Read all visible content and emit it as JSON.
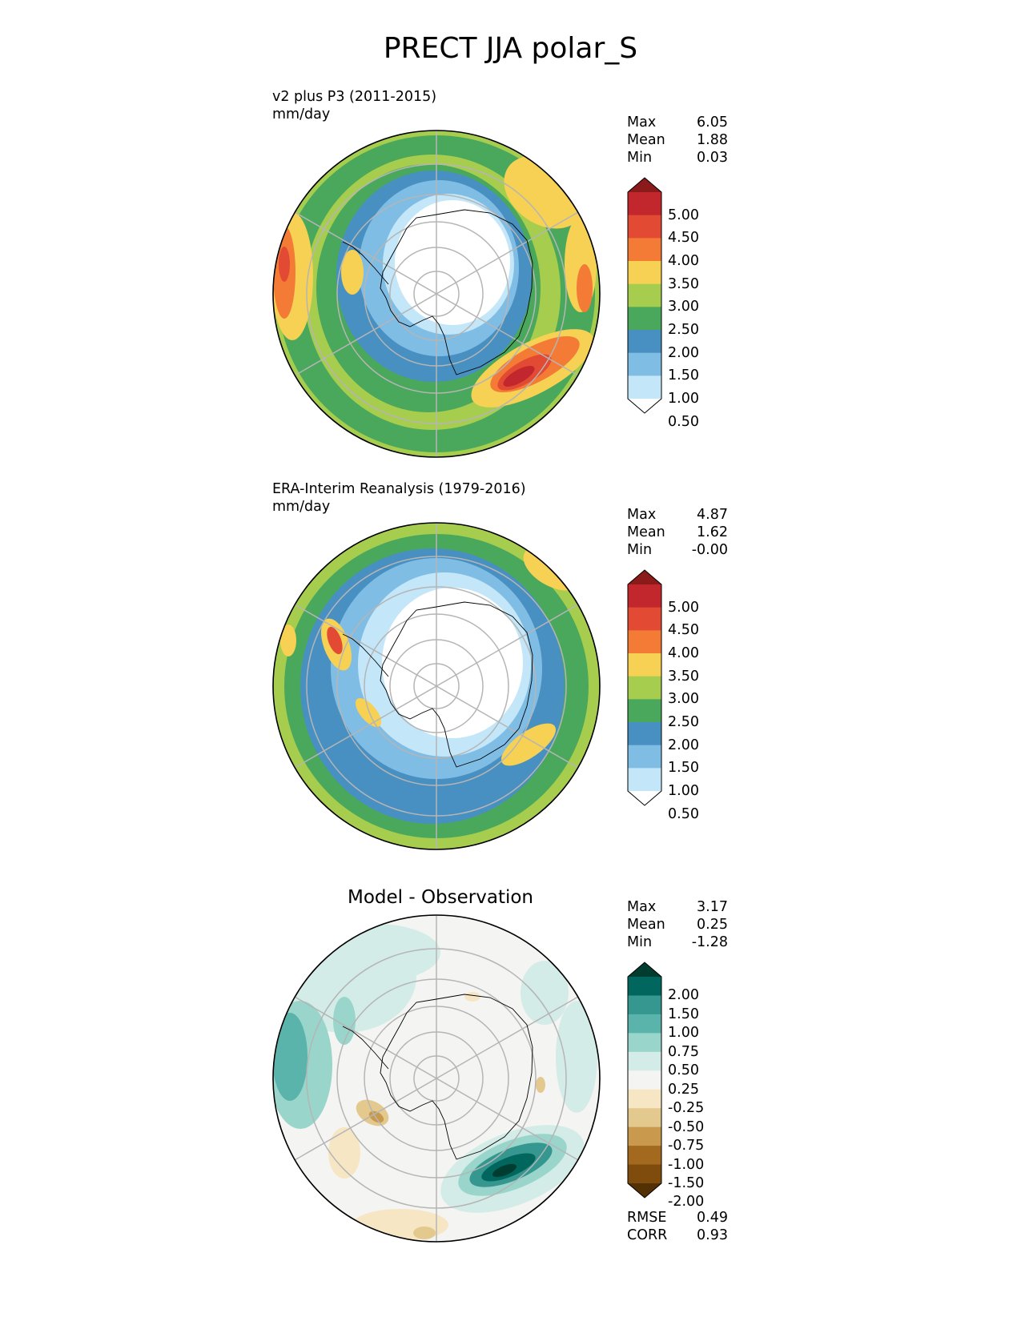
{
  "page": {
    "title": "PRECT JJA polar_S"
  },
  "panels": [
    {
      "title": "v2 plus P3 (2011-2015)",
      "units": "mm/day",
      "stats": [
        {
          "label": "Max",
          "value": "6.05"
        },
        {
          "label": "Mean",
          "value": "1.88"
        },
        {
          "label": "Min",
          "value": "0.03"
        }
      ]
    },
    {
      "title": "ERA-Interim Reanalysis (1979-2016)",
      "units": "mm/day",
      "stats": [
        {
          "label": "Max",
          "value": "4.87"
        },
        {
          "label": "Mean",
          "value": "1.62"
        },
        {
          "label": "Min",
          "value": "-0.00"
        }
      ]
    },
    {
      "title": "Model - Observation",
      "stats": [
        {
          "label": "Max",
          "value": "3.17"
        },
        {
          "label": "Mean",
          "value": "0.25"
        },
        {
          "label": "Min",
          "value": "-1.28"
        }
      ],
      "metrics": [
        {
          "label": "RMSE",
          "value": "0.49"
        },
        {
          "label": "CORR",
          "value": "0.93"
        }
      ]
    }
  ],
  "colorbars": {
    "precip": {
      "ticks": [
        "5.00",
        "4.50",
        "4.00",
        "3.50",
        "3.00",
        "2.50",
        "2.00",
        "1.50",
        "1.00",
        "0.50"
      ],
      "colors": [
        "#8b1a1a",
        "#c1272d",
        "#e34a33",
        "#f47b35",
        "#f6d153",
        "#a6cd4e",
        "#4aa85c",
        "#4790c1",
        "#80bde5",
        "#c3e6f8",
        "#ffffff"
      ]
    },
    "diff": {
      "ticks": [
        "2.00",
        "1.50",
        "1.00",
        "0.75",
        "0.50",
        "0.25",
        "-0.25",
        "-0.50",
        "-0.75",
        "-1.00",
        "-1.50",
        "-2.00"
      ],
      "colors": [
        "#003c30",
        "#01665e",
        "#35978f",
        "#5ab4ac",
        "#99d5cb",
        "#d4ece7",
        "#f4f4f2",
        "#f6e6c3",
        "#e4c98f",
        "#c99a4d",
        "#a36a1f",
        "#804c0e",
        "#543005"
      ]
    }
  },
  "chart_data": [
    {
      "type": "heatmap",
      "title": "v2 plus P3 (2011-2015)",
      "units": "mm/day",
      "projection": "south polar stereographic",
      "levels": [
        0.5,
        1.0,
        1.5,
        2.0,
        2.5,
        3.0,
        3.5,
        4.0,
        4.5,
        5.0
      ],
      "extend": "both",
      "stats": {
        "max": 6.05,
        "mean": 1.88,
        "min": 0.03
      }
    },
    {
      "type": "heatmap",
      "title": "ERA-Interim Reanalysis (1979-2016)",
      "units": "mm/day",
      "projection": "south polar stereographic",
      "levels": [
        0.5,
        1.0,
        1.5,
        2.0,
        2.5,
        3.0,
        3.5,
        4.0,
        4.5,
        5.0
      ],
      "extend": "both",
      "stats": {
        "max": 4.87,
        "mean": 1.62,
        "min": -0.0
      }
    },
    {
      "type": "heatmap",
      "title": "Model - Observation",
      "projection": "south polar stereographic",
      "levels": [
        -2.0,
        -1.5,
        -1.0,
        -0.75,
        -0.5,
        -0.25,
        0.25,
        0.5,
        0.75,
        1.0,
        1.5,
        2.0
      ],
      "extend": "both",
      "stats": {
        "max": 3.17,
        "mean": 0.25,
        "min": -1.28,
        "rmse": 0.49,
        "corr": 0.93
      }
    }
  ]
}
